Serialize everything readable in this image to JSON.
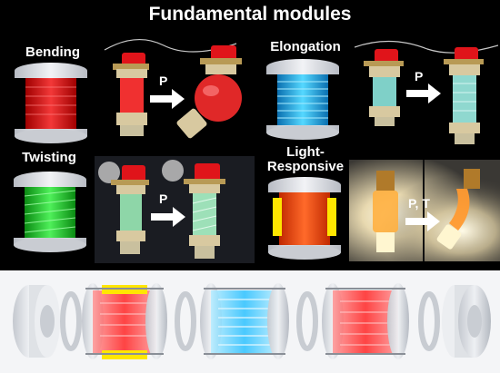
{
  "header": {
    "title": "Fundamental modules"
  },
  "modules": {
    "bending": {
      "label": "Bending",
      "action": "P"
    },
    "elongation": {
      "label": "Elongation",
      "action": "P"
    },
    "twisting": {
      "label": "Twisting",
      "action": "P"
    },
    "light": {
      "label_line1": "Light-",
      "label_line2": "Responsive",
      "action": "P, T"
    }
  },
  "colors": {
    "red_fluid": "#ff2a2a",
    "blue_fluid": "#38c8ff",
    "green_fluid": "#29d629",
    "orange_fluid": "#ff5a1a",
    "yellow_strip": "#ffe600",
    "flange": "#e4e6ea",
    "bottom_panel": "#f4f5f7"
  },
  "icons": [
    "cylinder-module-icon",
    "right-arrow-icon",
    "exploded-assembly-icon"
  ]
}
